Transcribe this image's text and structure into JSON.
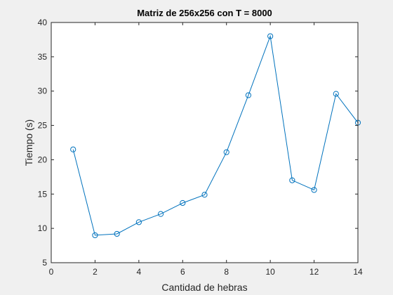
{
  "chart_data": {
    "type": "line",
    "title": "Matriz de 256x256 con T = 8000",
    "xlabel": "Cantidad de hebras",
    "ylabel": "Tiempo (s)",
    "xlim": [
      0,
      14
    ],
    "ylim": [
      5,
      40
    ],
    "xticks": [
      0,
      2,
      4,
      6,
      8,
      10,
      12,
      14
    ],
    "yticks": [
      5,
      10,
      15,
      20,
      25,
      30,
      35,
      40
    ],
    "grid": false,
    "series": [
      {
        "marker": "circle",
        "color": "#0072BD",
        "x": [
          1,
          2,
          3,
          4,
          5,
          6,
          7,
          8,
          9,
          10,
          11,
          12,
          13,
          14
        ],
        "y": [
          21.5,
          9.0,
          9.2,
          10.9,
          12.1,
          13.7,
          14.9,
          21.1,
          29.4,
          38.0,
          17.0,
          15.6,
          29.6,
          25.4
        ]
      }
    ]
  }
}
